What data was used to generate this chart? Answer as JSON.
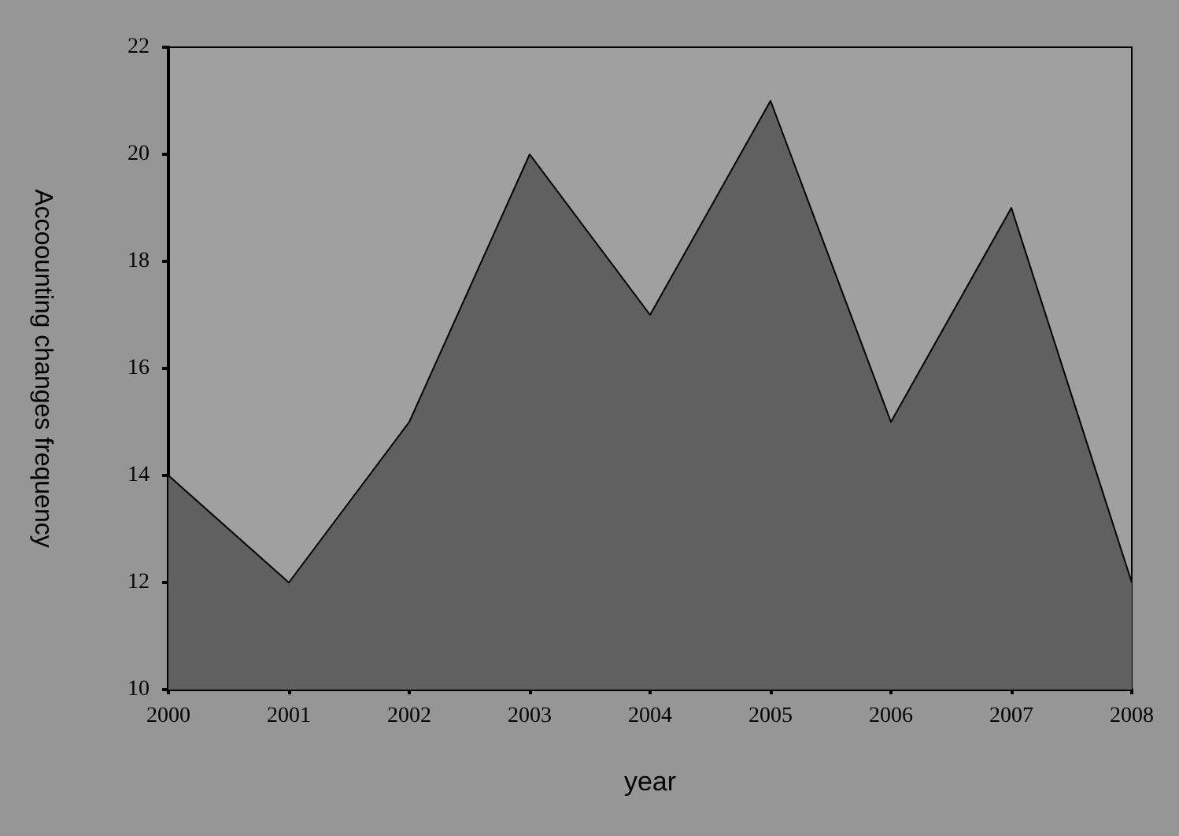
{
  "chart_data": {
    "type": "area",
    "xlabel": "year",
    "ylabel": "Accoounting changes frequency",
    "categories": [
      "2000",
      "2001",
      "2002",
      "2003",
      "2004",
      "2005",
      "2006",
      "2007",
      "2008"
    ],
    "series": [
      {
        "color": "#606060",
        "values": [
          14,
          12,
          15,
          20,
          17,
          21,
          15,
          19,
          12
        ]
      }
    ],
    "ylim": [
      10,
      22
    ],
    "yticks": [
      10,
      12,
      14,
      16,
      18,
      20,
      22
    ],
    "grid": false
  }
}
